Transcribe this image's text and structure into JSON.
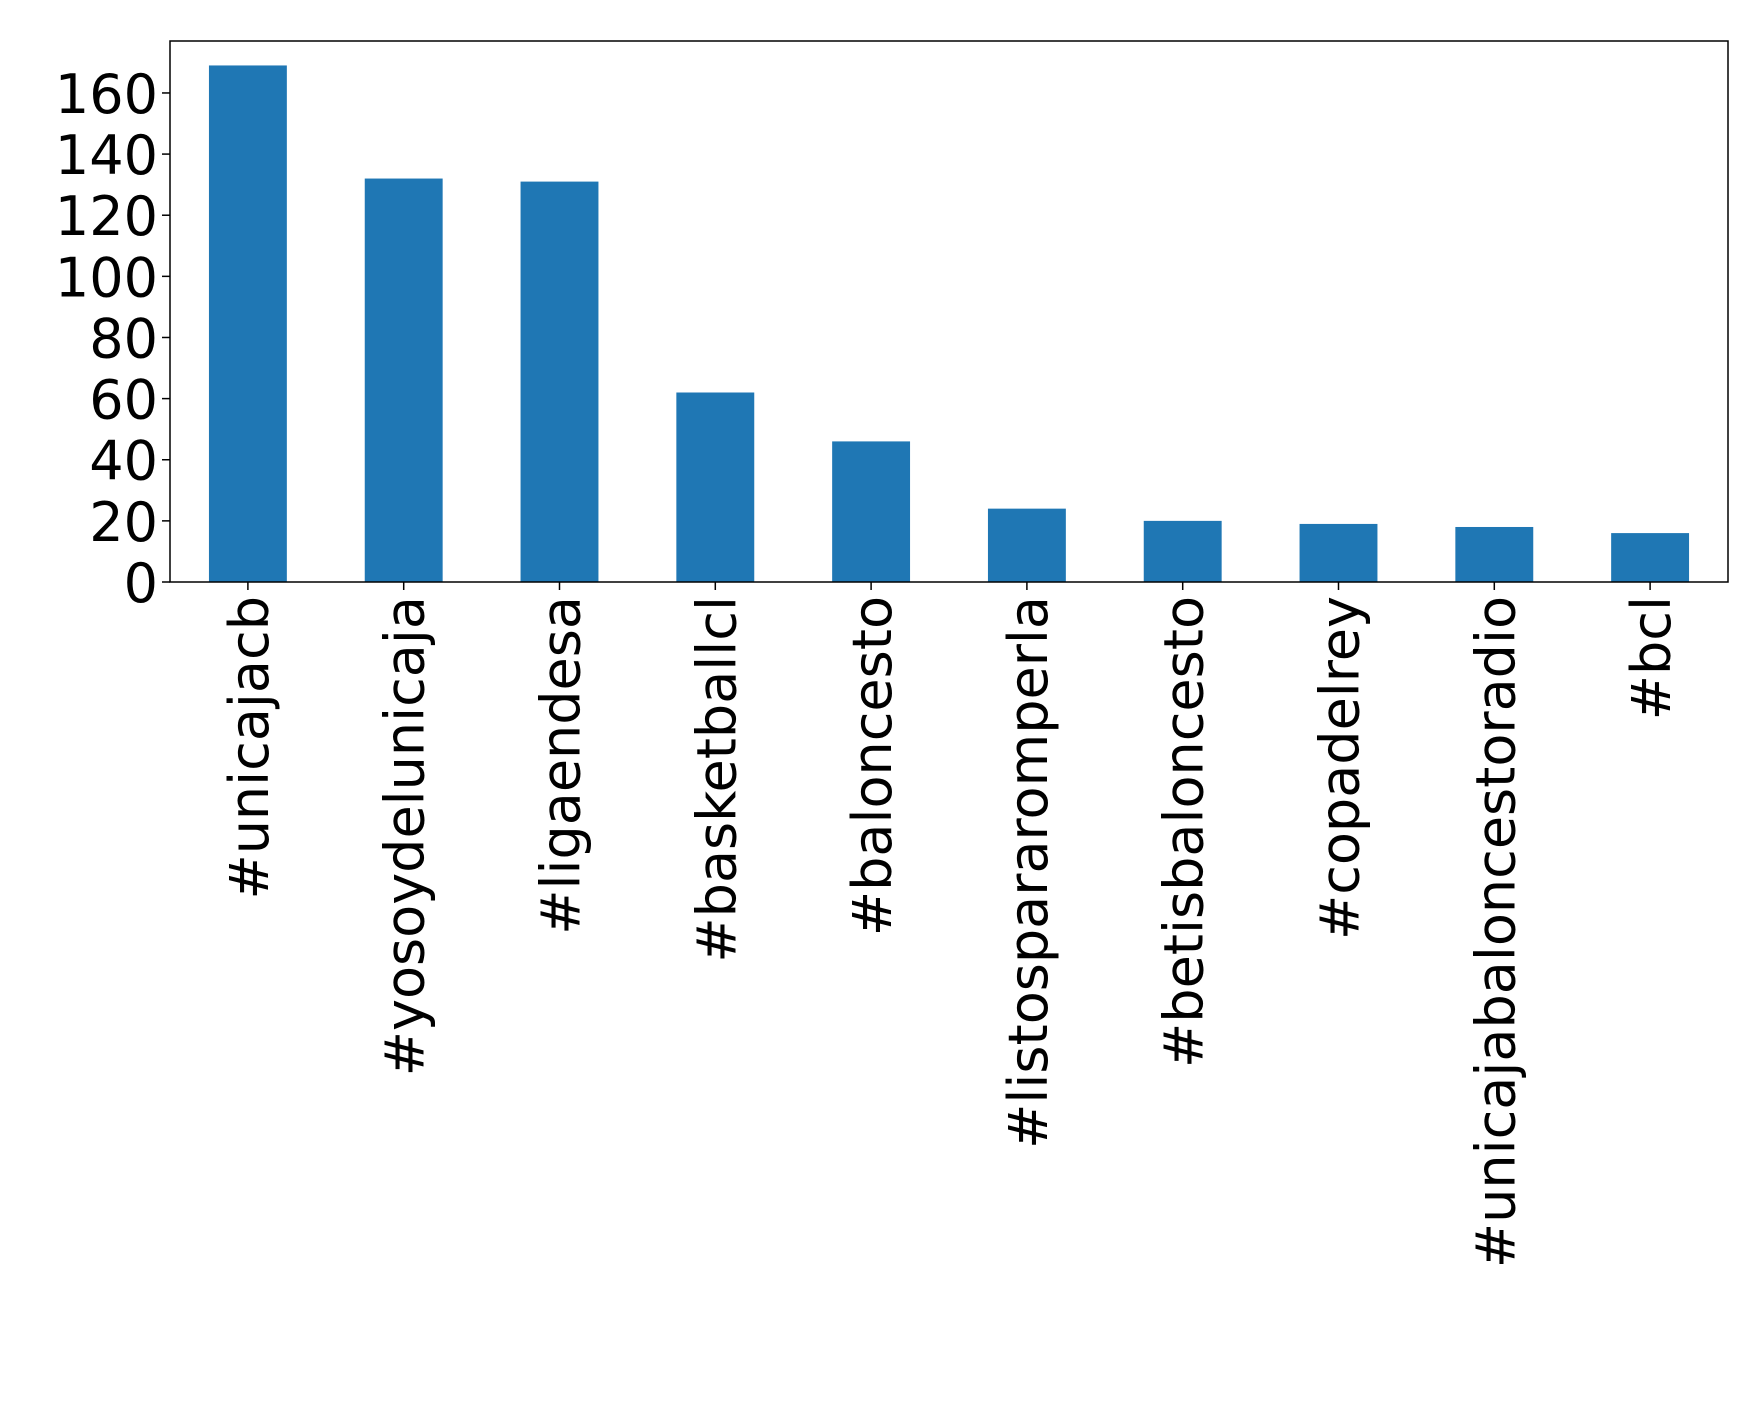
{
  "chart_data": {
    "type": "bar",
    "categories": [
      "#unicajacb",
      "#yosoydelunicaja",
      "#ligaendesa",
      "#basketballcl",
      "#baloncesto",
      "#listospararomperla",
      "#betisbaloncesto",
      "#copadelrey",
      "#unicajabaloncestoradio",
      "#bcl"
    ],
    "values": [
      169,
      132,
      131,
      62,
      46,
      24,
      20,
      19,
      18,
      16
    ],
    "color": "#1f77b4",
    "ylim": [
      0,
      177
    ],
    "yticks": [
      0,
      20,
      40,
      60,
      80,
      100,
      120,
      140,
      160
    ],
    "grid": false
  }
}
